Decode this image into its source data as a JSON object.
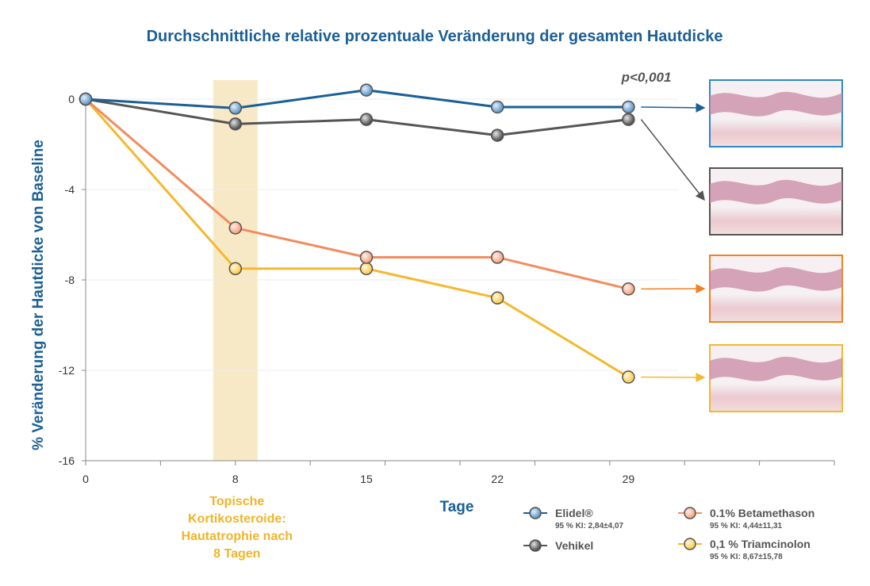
{
  "chart_data": {
    "type": "line",
    "title": "Durchschnittliche relative prozentuale Veränderung der gesamten Hautdicke",
    "xlabel": "Tage",
    "ylabel": "% Veränderung der Hautdicke von Baseline",
    "x": [
      0,
      8,
      15,
      22,
      29
    ],
    "x_ticks": [
      "0",
      "8",
      "15",
      "22",
      "29"
    ],
    "y_ticks": [
      "0",
      "-4",
      "-8",
      "-12",
      "-16"
    ],
    "ylim": [
      -16,
      0
    ],
    "xlim": [
      0,
      40
    ],
    "annotation": "p<0,001",
    "highlight_band": {
      "x": 8,
      "label_lines": [
        "Topische",
        "Kortikosteroide:",
        "Hautatrophie nach",
        "8 Tagen"
      ]
    },
    "series": [
      {
        "name": "Elidel®",
        "ci": "95 % KI: 2,84±4,07",
        "color": "#1a5f96",
        "marker": "#5b95c9",
        "values": [
          0,
          -0.4,
          0.4,
          -0.35,
          -0.35
        ]
      },
      {
        "name": "Vehikel",
        "ci": "",
        "color": "#555555",
        "marker": "#4d4d4d",
        "values": [
          0,
          -1.1,
          -0.9,
          -1.6,
          -0.9
        ]
      },
      {
        "name": "0.1% Betamethason",
        "ci": "95 % KI: 4,44±11,31",
        "color": "#f28c5f",
        "marker": "#f7a07c",
        "values": [
          0,
          -5.7,
          -7.0,
          -7.0,
          -8.4
        ]
      },
      {
        "name": "0,1 % Triamcinolon",
        "ci": "95 % KI: 8,67±15,78",
        "color": "#f5b82e",
        "marker": "#fbcc45",
        "values": [
          0,
          -7.5,
          -7.5,
          -8.8,
          -12.3
        ]
      }
    ]
  },
  "histology": [
    {
      "name": "elidel",
      "border": "#2f86c8"
    },
    {
      "name": "vehikel",
      "border": "#555555"
    },
    {
      "name": "betamethason",
      "border": "#f28020"
    },
    {
      "name": "triamcinolon",
      "border": "#f5b82e"
    }
  ]
}
